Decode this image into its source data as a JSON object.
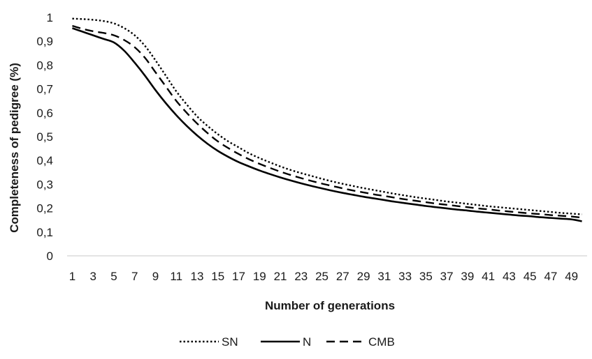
{
  "chart_data": {
    "type": "line",
    "title": "",
    "xlabel": "Number of generations",
    "ylabel": "Completeness of pedigree (%)",
    "ylim": [
      0,
      1
    ],
    "xlim": [
      1,
      50
    ],
    "y_ticks": [
      "0",
      "0,1",
      "0,2",
      "0,3",
      "0,4",
      "0,5",
      "0,6",
      "0,7",
      "0,8",
      "0,9",
      "1"
    ],
    "x_ticks": [
      "1",
      "3",
      "5",
      "7",
      "9",
      "11",
      "13",
      "15",
      "17",
      "19",
      "21",
      "23",
      "25",
      "27",
      "29",
      "31",
      "33",
      "35",
      "37",
      "39",
      "41",
      "43",
      "45",
      "47",
      "49"
    ],
    "grid": false,
    "legend_position": "bottom",
    "x": [
      1,
      2,
      3,
      4,
      5,
      6,
      7,
      8,
      9,
      10,
      11,
      12,
      13,
      14,
      15,
      16,
      17,
      18,
      19,
      20,
      21,
      22,
      23,
      24,
      25,
      26,
      27,
      28,
      29,
      30,
      31,
      32,
      33,
      34,
      35,
      36,
      37,
      38,
      39,
      40,
      41,
      42,
      43,
      44,
      45,
      46,
      47,
      48,
      49,
      50
    ],
    "series": [
      {
        "name": "SN",
        "style": "dotted",
        "color": "#000000",
        "values": [
          0.995,
          0.993,
          0.99,
          0.985,
          0.975,
          0.955,
          0.925,
          0.88,
          0.82,
          0.755,
          0.69,
          0.635,
          0.585,
          0.545,
          0.51,
          0.48,
          0.455,
          0.43,
          0.41,
          0.392,
          0.375,
          0.36,
          0.347,
          0.335,
          0.323,
          0.312,
          0.302,
          0.293,
          0.284,
          0.276,
          0.268,
          0.26,
          0.253,
          0.246,
          0.24,
          0.234,
          0.228,
          0.223,
          0.218,
          0.213,
          0.208,
          0.204,
          0.2,
          0.196,
          0.192,
          0.188,
          0.184,
          0.18,
          0.177,
          0.174
        ]
      },
      {
        "name": "N",
        "style": "solid",
        "color": "#000000",
        "values": [
          0.955,
          0.94,
          0.925,
          0.91,
          0.895,
          0.86,
          0.81,
          0.755,
          0.695,
          0.64,
          0.59,
          0.545,
          0.505,
          0.47,
          0.44,
          0.415,
          0.393,
          0.375,
          0.358,
          0.343,
          0.329,
          0.316,
          0.304,
          0.293,
          0.283,
          0.273,
          0.264,
          0.256,
          0.248,
          0.241,
          0.234,
          0.227,
          0.221,
          0.215,
          0.209,
          0.204,
          0.199,
          0.194,
          0.19,
          0.185,
          0.181,
          0.177,
          0.173,
          0.169,
          0.166,
          0.162,
          0.159,
          0.156,
          0.153,
          0.145
        ]
      },
      {
        "name": "CMB",
        "style": "dashed",
        "color": "#000000",
        "values": [
          0.965,
          0.952,
          0.942,
          0.935,
          0.925,
          0.905,
          0.875,
          0.83,
          0.77,
          0.71,
          0.65,
          0.6,
          0.555,
          0.515,
          0.48,
          0.452,
          0.427,
          0.405,
          0.386,
          0.369,
          0.353,
          0.339,
          0.326,
          0.314,
          0.303,
          0.293,
          0.283,
          0.274,
          0.266,
          0.258,
          0.251,
          0.244,
          0.237,
          0.231,
          0.225,
          0.219,
          0.214,
          0.209,
          0.204,
          0.199,
          0.195,
          0.19,
          0.186,
          0.182,
          0.178,
          0.175,
          0.171,
          0.168,
          0.165,
          0.16
        ]
      }
    ]
  }
}
